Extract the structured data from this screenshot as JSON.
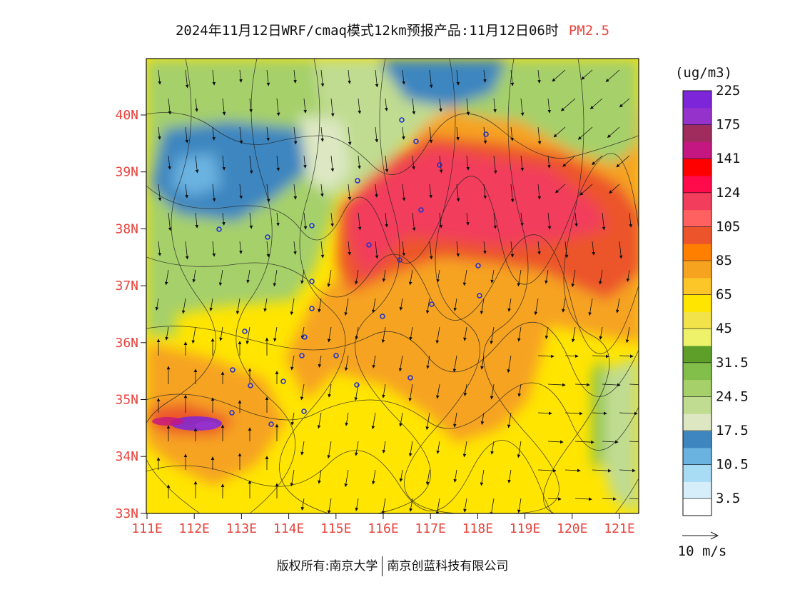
{
  "title": {
    "text": "2024年11月12日WRF/cmaq模式12km预报产品:11月12日06时",
    "pollutant": "PM2.5"
  },
  "map": {
    "lat_labels": [
      "40N",
      "39N",
      "38N",
      "37N",
      "36N",
      "35N",
      "34N",
      "33N"
    ],
    "lon_labels": [
      "111E",
      "112E",
      "113E",
      "114E",
      "115E",
      "116E",
      "117E",
      "118E",
      "119E",
      "120E",
      "121E"
    ]
  },
  "colorbar": {
    "unit": "(ug/m3)",
    "colors": [
      "#ffffff",
      "#d6eefa",
      "#a8dcf5",
      "#6ab2e0",
      "#3d86c0",
      "#dde8c3",
      "#c0dc90",
      "#a6d06a",
      "#82bf4a",
      "#5e9f2a",
      "#eef26a",
      "#f3e34a",
      "#ffe500",
      "#fcc528",
      "#f6a320",
      "#ff7f00",
      "#ec542c",
      "#ff6060",
      "#f23d5c",
      "#ff0a4a",
      "#ff0000",
      "#c41781",
      "#a02c5e",
      "#9632cc",
      "#7d25d9"
    ],
    "labels": [
      "3.5",
      "10.5",
      "17.5",
      "24.5",
      "31.5",
      "45",
      "65",
      "85",
      "105",
      "124",
      "141",
      "175",
      "225"
    ]
  },
  "wind_legend": {
    "label": "10 m/s"
  },
  "footer": {
    "left": "版权所有:南京大学",
    "right": "南京创蓝科技有限公司"
  }
}
